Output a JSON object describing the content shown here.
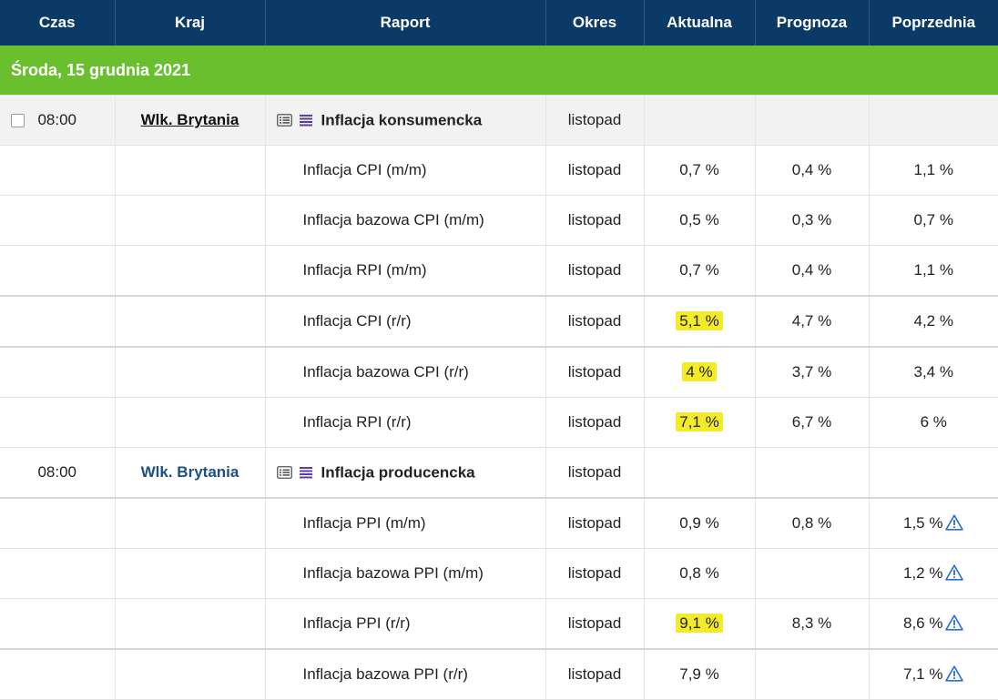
{
  "headers": {
    "time": "Czas",
    "country": "Kraj",
    "report": "Raport",
    "period": "Okres",
    "actual": "Aktualna",
    "forecast": "Prognoza",
    "previous": "Poprzednia"
  },
  "date_label": "Środa, 15 grudnia 2021",
  "colors": {
    "header_bg": "#0b3a66",
    "date_bg": "#6abf2e",
    "highlight": "#f3ea2a",
    "warning": "#2a72c9"
  },
  "group1": {
    "time": "08:00",
    "country": "Wlk. Brytania",
    "report": "Inflacja konsumencka",
    "period": "listopad",
    "rows": [
      {
        "report": "Inflacja CPI (m/m)",
        "period": "listopad",
        "actual": "0,7 %",
        "forecast": "0,4 %",
        "previous": "1,1 %"
      },
      {
        "report": "Inflacja bazowa CPI (m/m)",
        "period": "listopad",
        "actual": "0,5 %",
        "forecast": "0,3 %",
        "previous": "0,7 %"
      },
      {
        "report": "Inflacja RPI (m/m)",
        "period": "listopad",
        "actual": "0,7 %",
        "forecast": "0,4 %",
        "previous": "1,1 %"
      },
      {
        "report": "Inflacja CPI (r/r)",
        "period": "listopad",
        "actual": "5,1 %",
        "forecast": "4,7 %",
        "previous": "4,2 %"
      },
      {
        "report": "Inflacja bazowa CPI (r/r)",
        "period": "listopad",
        "actual": "4 %",
        "forecast": "3,7 %",
        "previous": "3,4 %"
      },
      {
        "report": "Inflacja RPI (r/r)",
        "period": "listopad",
        "actual": "7,1 %",
        "forecast": "6,7 %",
        "previous": "6 %"
      }
    ]
  },
  "group2": {
    "time": "08:00",
    "country": "Wlk. Brytania",
    "report": "Inflacja producencka",
    "period": "listopad",
    "rows": [
      {
        "report": "Inflacja PPI (m/m)",
        "period": "listopad",
        "actual": "0,9 %",
        "forecast": "0,8 %",
        "previous": "1,5 %"
      },
      {
        "report": "Inflacja bazowa PPI (m/m)",
        "period": "listopad",
        "actual": "0,8 %",
        "forecast": "",
        "previous": "1,2 %"
      },
      {
        "report": "Inflacja PPI (r/r)",
        "period": "listopad",
        "actual": "9,1 %",
        "forecast": "8,3 %",
        "previous": "8,6 %"
      },
      {
        "report": "Inflacja bazowa PPI (r/r)",
        "period": "listopad",
        "actual": "7,9 %",
        "forecast": "",
        "previous": "7,1 %"
      }
    ]
  }
}
